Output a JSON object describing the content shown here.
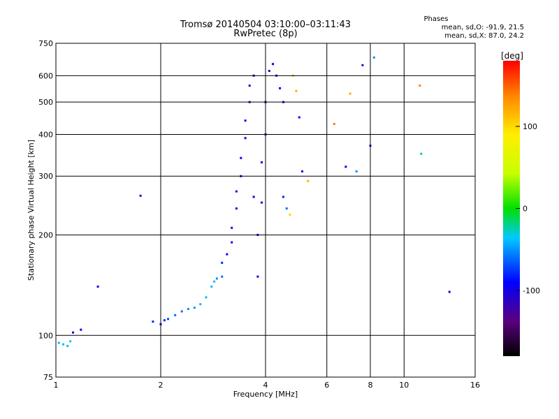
{
  "header": {
    "title_line1": "Tromsø 20140504 03:10:00–03:11:43",
    "title_line2": "RwPretec (8p)",
    "stats_title": "Phases",
    "stats_line1": "mean, sd,O: -91.9, 21.5",
    "stats_line2": "mean, sd,X: 87.0, 24.2"
  },
  "chart_data": {
    "type": "scatter",
    "xlabel": "Frequency [MHz]",
    "ylabel": "Stationary phase Virtual Height [km]",
    "x_scale": "log",
    "y_scale": "log",
    "xlim": [
      1,
      16
    ],
    "ylim": [
      75,
      750
    ],
    "x_ticks": [
      1,
      2,
      4,
      6,
      8,
      10,
      16
    ],
    "x_tick_labels": [
      "1",
      "2",
      "4",
      "6",
      "8",
      "10",
      "16"
    ],
    "y_ticks": [
      75,
      100,
      200,
      300,
      400,
      500,
      600,
      750
    ],
    "y_tick_labels": [
      "75",
      "100",
      "200",
      "300",
      "400",
      "500",
      "600",
      "750"
    ],
    "grid": true,
    "colorbar": {
      "label": "[deg]",
      "range": [
        -180,
        180
      ],
      "tick_values": [
        100,
        0,
        -100
      ],
      "tick_labels": [
        "100",
        "0",
        "-100"
      ],
      "colormap": "rainbow (black at -180, violet/blue, cyan, green at 0, yellow, orange, red at 180)"
    },
    "series": [
      {
        "points": [
          [
            1.02,
            95,
            -40
          ],
          [
            1.05,
            94,
            -40
          ],
          [
            1.08,
            93,
            -40
          ],
          [
            1.1,
            96,
            -30
          ],
          [
            1.12,
            102,
            -90
          ],
          [
            1.18,
            104,
            -90
          ],
          [
            1.32,
            140,
            -100
          ],
          [
            1.75,
            262,
            -100
          ],
          [
            1.9,
            110,
            -80
          ],
          [
            2.0,
            108,
            -90
          ],
          [
            2.05,
            111,
            -80
          ],
          [
            2.1,
            112,
            -70
          ],
          [
            2.2,
            115,
            -60
          ],
          [
            2.3,
            118,
            -60
          ],
          [
            2.4,
            120,
            -50
          ],
          [
            2.5,
            121,
            -50
          ],
          [
            2.6,
            124,
            -40
          ],
          [
            2.7,
            130,
            -40
          ],
          [
            2.8,
            140,
            -40
          ],
          [
            2.85,
            145,
            -40
          ],
          [
            2.9,
            148,
            -50
          ],
          [
            3.0,
            150,
            -60
          ],
          [
            3.0,
            165,
            -80
          ],
          [
            3.1,
            175,
            -90
          ],
          [
            3.2,
            190,
            -100
          ],
          [
            3.2,
            210,
            -100
          ],
          [
            3.3,
            240,
            -100
          ],
          [
            3.3,
            270,
            -100
          ],
          [
            3.4,
            300,
            -100
          ],
          [
            3.4,
            340,
            -90
          ],
          [
            3.5,
            390,
            -100
          ],
          [
            3.5,
            440,
            -100
          ],
          [
            3.6,
            500,
            -100
          ],
          [
            3.6,
            560,
            -100
          ],
          [
            3.7,
            600,
            -100
          ],
          [
            3.7,
            260,
            -100
          ],
          [
            3.8,
            200,
            -100
          ],
          [
            3.8,
            150,
            -100
          ],
          [
            3.9,
            250,
            -100
          ],
          [
            3.9,
            330,
            -100
          ],
          [
            4.0,
            400,
            -90
          ],
          [
            4.0,
            500,
            -100
          ],
          [
            4.1,
            620,
            -100
          ],
          [
            4.2,
            650,
            -100
          ],
          [
            4.3,
            600,
            -90
          ],
          [
            4.4,
            550,
            -90
          ],
          [
            4.5,
            500,
            -90
          ],
          [
            4.5,
            260,
            -80
          ],
          [
            4.6,
            240,
            -60
          ],
          [
            4.7,
            230,
            100
          ],
          [
            4.8,
            600,
            110
          ],
          [
            4.9,
            540,
            120
          ],
          [
            5.0,
            450,
            -90
          ],
          [
            5.1,
            310,
            -100
          ],
          [
            5.3,
            290,
            120
          ],
          [
            6.3,
            430,
            140
          ],
          [
            6.8,
            320,
            -100
          ],
          [
            7.0,
            530,
            120
          ],
          [
            7.3,
            310,
            -50
          ],
          [
            7.6,
            645,
            -120
          ],
          [
            8.0,
            370,
            -100
          ],
          [
            8.2,
            680,
            -50
          ],
          [
            11.1,
            560,
            140
          ],
          [
            11.2,
            350,
            -20
          ],
          [
            13.5,
            135,
            -100
          ]
        ]
      }
    ]
  }
}
